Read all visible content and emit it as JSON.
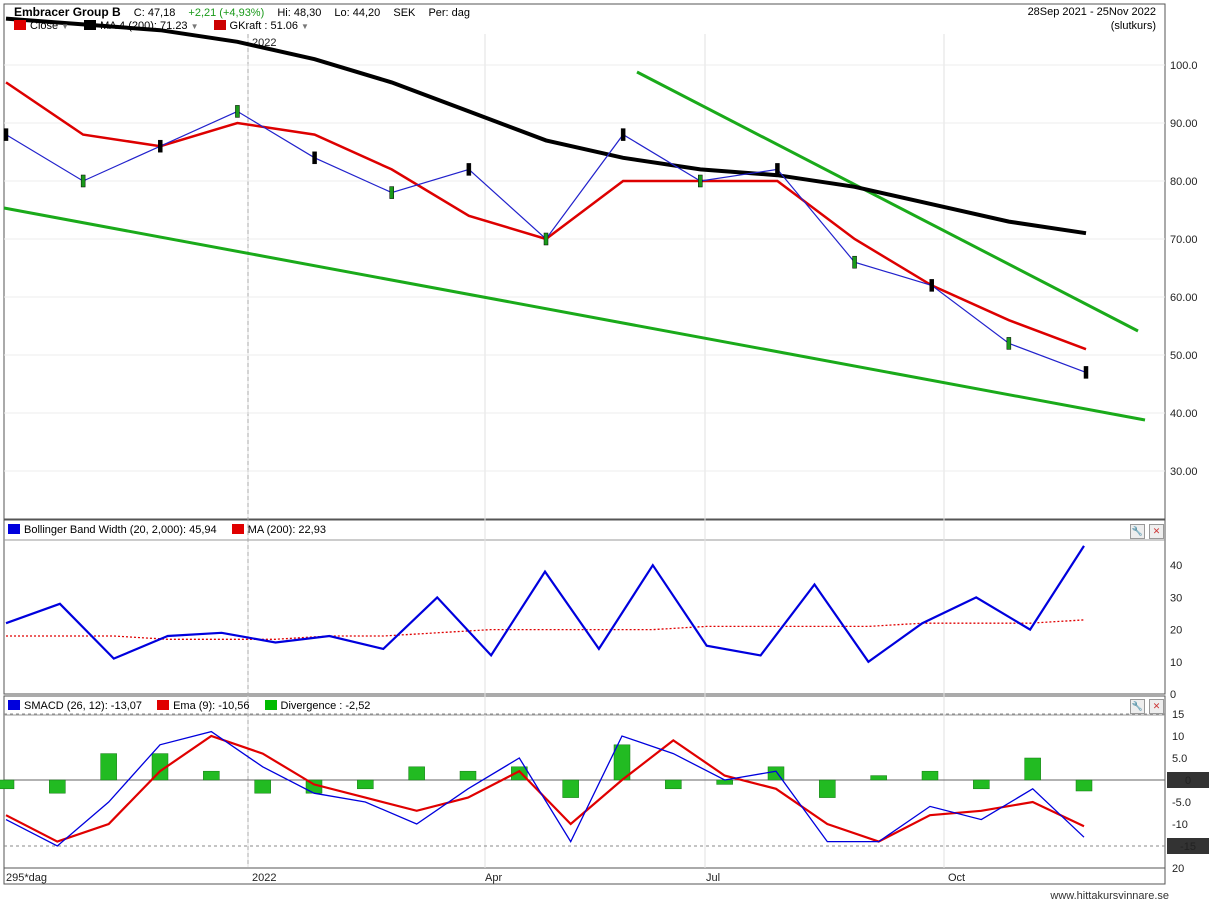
{
  "header": {
    "name": "Embracer Group B",
    "close": "C: 47,18",
    "change": "+2,21 (+4,93%)",
    "high": "Hi: 48,30",
    "low": "Lo: 44,20",
    "currency": "SEK",
    "period": "Per: dag",
    "date_range": "28Sep 2021 - 25Nov 2022",
    "mode": "(slutkurs)",
    "legend": [
      {
        "label": "Close",
        "color": "#e00000"
      },
      {
        "label": "MA 4 (200): 71.23",
        "color": "#000000"
      },
      {
        "label": "GKraft : 51.06",
        "color": "#cc0000"
      }
    ],
    "year_marker": "2022"
  },
  "panels": {
    "bollinger_legend": [
      {
        "label": "Bollinger Band Width (20, 2,000): 45,94",
        "color": "#0000dd"
      },
      {
        "label": "MA (200): 22,93",
        "color": "#e00000"
      }
    ],
    "macd_legend": [
      {
        "label": "SMACD (26, 12): -13,07",
        "color": "#0000dd"
      },
      {
        "label": "Ema (9): -10,56",
        "color": "#e00000"
      },
      {
        "label": "Divergence : -2,52",
        "color": "#00bb00"
      }
    ],
    "x_labels": [
      "295*dag",
      "2022",
      "Apr",
      "Jul",
      "Oct"
    ],
    "footer": "www.hittakursvinnare.se"
  },
  "chart_data": [
    {
      "type": "line",
      "title": "Embracer Group B",
      "yticks": [
        "100.0",
        "90.00",
        "80.00",
        "70.00",
        "60.00",
        "50.00",
        "40.00",
        "30.00"
      ],
      "ylim": [
        20,
        106
      ],
      "x": [
        "2021-10-01",
        "2021-11-01",
        "2021-12-01",
        "2022-01-01",
        "2022-02-01",
        "2022-03-01",
        "2022-04-01",
        "2022-05-01",
        "2022-06-01",
        "2022-07-01",
        "2022-08-01",
        "2022-09-01",
        "2022-10-01",
        "2022-11-01",
        "2022-11-25"
      ],
      "series": [
        {
          "name": "Close",
          "values": [
            88,
            80,
            86,
            92,
            84,
            78,
            82,
            70,
            88,
            80,
            82,
            66,
            62,
            52,
            47
          ]
        },
        {
          "name": "MA 4 (200): 71.23",
          "values": [
            108,
            107,
            106,
            104,
            101,
            97,
            92,
            87,
            84,
            82,
            81,
            79,
            76,
            73,
            71
          ]
        },
        {
          "name": "GKraft : 51.06",
          "values": [
            97,
            88,
            86,
            90,
            88,
            82,
            74,
            70,
            80,
            80,
            80,
            70,
            62,
            56,
            51
          ]
        }
      ]
    },
    {
      "type": "line",
      "title": "Bollinger Band Width (20, 2,000): 45,94",
      "yticks": [
        "40",
        "30",
        "20",
        "10",
        "0"
      ],
      "ylim": [
        0,
        46
      ],
      "series": [
        {
          "name": "Bollinger Band Width (20, 2,000): 45,94",
          "values": [
            22,
            28,
            11,
            18,
            19,
            16,
            18,
            14,
            30,
            12,
            38,
            14,
            40,
            15,
            12,
            34,
            10,
            22,
            30,
            20,
            46
          ]
        },
        {
          "name": "MA (200): 22,93",
          "values": [
            18,
            18,
            18,
            17,
            17,
            17,
            18,
            18,
            19,
            20,
            20,
            20,
            20,
            21,
            21,
            21,
            21,
            22,
            22,
            22,
            23
          ]
        }
      ]
    },
    {
      "type": "line",
      "title": "SMACD (26, 12): -13,07",
      "yticks": [
        "15",
        "10",
        "5.0",
        "0",
        "-5.0",
        "-10",
        "-15",
        "20"
      ],
      "ylim": [
        -20,
        15
      ],
      "series": [
        {
          "name": "SMACD (26, 12): -13,07",
          "values": [
            -9,
            -15,
            -5,
            8,
            11,
            3,
            -3,
            -5,
            -10,
            -2,
            5,
            -14,
            10,
            6,
            0,
            2,
            -14,
            -14,
            -6,
            -9,
            -2,
            -13
          ]
        },
        {
          "name": "Ema (9): -10,56",
          "values": [
            -8,
            -14,
            -10,
            2,
            10,
            6,
            -1,
            -4,
            -7,
            -4,
            2,
            -10,
            0,
            9,
            1,
            -2,
            -10,
            -14,
            -8,
            -7,
            -5,
            -10.5
          ]
        },
        {
          "name": "Divergence : -2,52",
          "values": [
            -2,
            -3,
            6,
            6,
            2,
            -3,
            -3,
            -2,
            3,
            2,
            3,
            -4,
            8,
            -2,
            -1,
            3,
            -4,
            1,
            2,
            -2,
            5,
            -2.5
          ]
        }
      ]
    }
  ]
}
